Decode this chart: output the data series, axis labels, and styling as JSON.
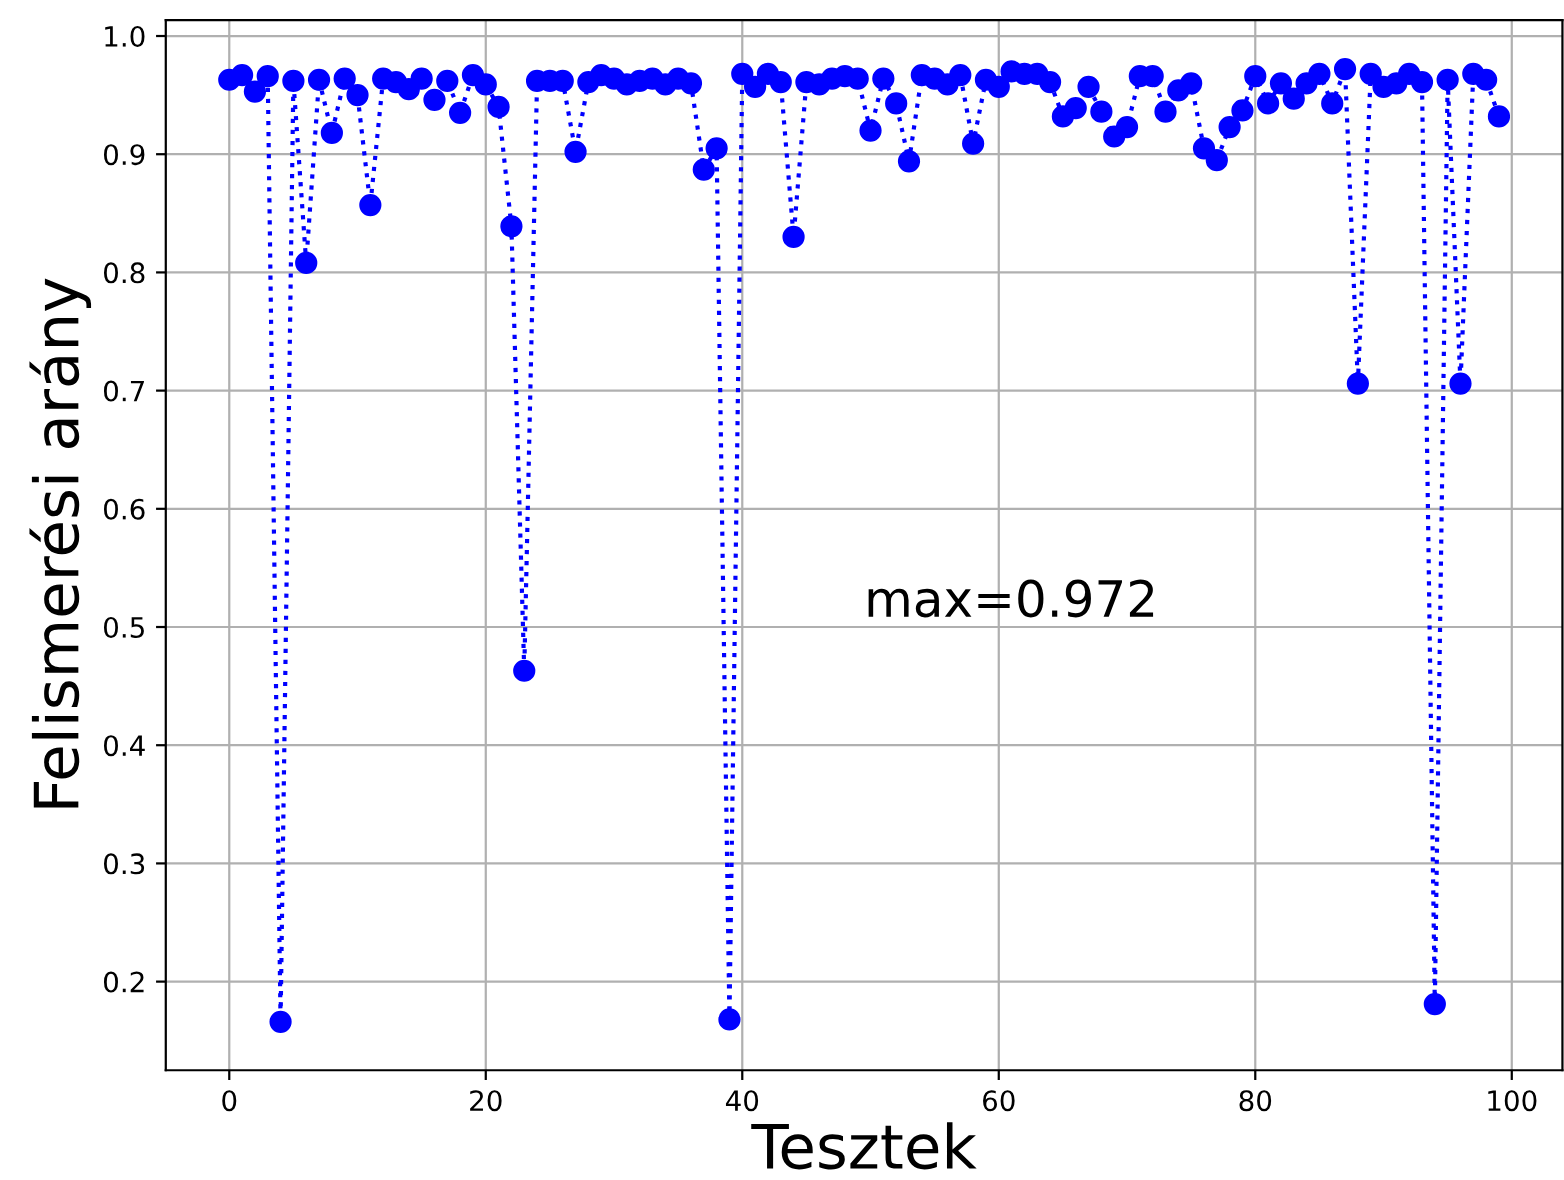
{
  "chart_data": {
    "type": "line",
    "xlabel": "Tesztek",
    "ylabel": "Felismerési arány",
    "annotations": [
      "max=0.972"
    ],
    "x": [
      0,
      1,
      2,
      3,
      4,
      5,
      6,
      7,
      8,
      9,
      10,
      11,
      12,
      13,
      14,
      15,
      16,
      17,
      18,
      19,
      20,
      21,
      22,
      23,
      24,
      25,
      26,
      27,
      28,
      29,
      30,
      31,
      32,
      33,
      34,
      35,
      36,
      37,
      38,
      39,
      40,
      41,
      42,
      43,
      44,
      45,
      46,
      47,
      48,
      49,
      50,
      51,
      52,
      53,
      54,
      55,
      56,
      57,
      58,
      59,
      60,
      61,
      62,
      63,
      64,
      65,
      66,
      67,
      68,
      69,
      70,
      71,
      72,
      73,
      74,
      75,
      76,
      77,
      78,
      79,
      80,
      81,
      82,
      83,
      84,
      85,
      86,
      87,
      88,
      89,
      90,
      91,
      92,
      93,
      94,
      95,
      96,
      97,
      98,
      99
    ],
    "series": [
      {
        "color": "#0000ff",
        "values": [
          0.963,
          0.967,
          0.953,
          0.966,
          0.166,
          0.962,
          0.808,
          0.963,
          0.918,
          0.964,
          0.95,
          0.857,
          0.964,
          0.961,
          0.955,
          0.964,
          0.946,
          0.962,
          0.935,
          0.967,
          0.959,
          0.94,
          0.839,
          0.463,
          0.962,
          0.962,
          0.962,
          0.902,
          0.961,
          0.967,
          0.964,
          0.959,
          0.962,
          0.964,
          0.959,
          0.964,
          0.96,
          0.887,
          0.905,
          0.168,
          0.968,
          0.957,
          0.968,
          0.961,
          0.83,
          0.961,
          0.959,
          0.964,
          0.966,
          0.964,
          0.92,
          0.964,
          0.943,
          0.894,
          0.967,
          0.964,
          0.959,
          0.967,
          0.909,
          0.963,
          0.957,
          0.97,
          0.968,
          0.968,
          0.961,
          0.932,
          0.939,
          0.957,
          0.936,
          0.915,
          0.923,
          0.966,
          0.966,
          0.936,
          0.954,
          0.96,
          0.905,
          0.895,
          0.923,
          0.937,
          0.966,
          0.943,
          0.96,
          0.947,
          0.96,
          0.968,
          0.943,
          0.972,
          0.706,
          0.968,
          0.957,
          0.96,
          0.968,
          0.961,
          0.181,
          0.963,
          0.706,
          0.968,
          0.963,
          0.932
        ]
      }
    ],
    "xlim": [
      -4.95,
      103.95
    ],
    "xticks": [
      0,
      20,
      40,
      60,
      80,
      100
    ],
    "ylim": [
      0.125,
      1.0135
    ],
    "yticks": [
      0.2,
      0.3,
      0.4,
      0.5,
      0.6,
      0.7,
      0.8,
      0.9,
      {
        "value": 1,
        "label": "1.0"
      }
    ],
    "grid": true,
    "marker": "circle",
    "line_style": "dotted"
  }
}
